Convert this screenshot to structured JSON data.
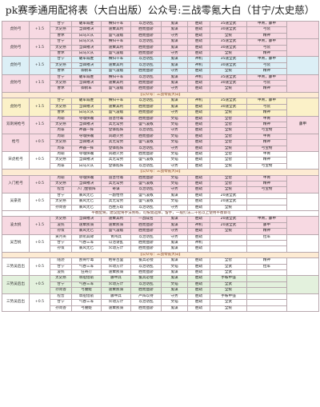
{
  "title": "pk赛季通用配将表（大白出版）公众号:三战零氪大白（甘宁/太史慈）",
  "blocks": [
    {
      "label": "虎防弓",
      "mark": "+1.5",
      "theme": "pink",
      "note": "",
      "rows": [
        [
          "甘宁",
          "破军威胜",
          "横扫千军",
          "以治访乱",
          "鬼谋",
          "胜疏",
          "35速全武",
          "甲胄，藤甲"
        ],
        [
          "太史慈",
          "当锋摧决",
          "速乘其利",
          "胜而益骄",
          "鬼谋",
          "胜疏",
          "30速全武",
          "弓装"
        ],
        [
          "曹休",
          "白马义从",
          "盛气凌敌",
          "胜而益骄",
          "守势",
          "胜疏",
          "全统",
          "精神"
        ]
      ]
    },
    {
      "label": "虎防弓",
      "mark": "+1.5",
      "theme": "pink",
      "note": "",
      "rows": [
        [
          "甘宁",
          "白马义从",
          "横扫千军",
          "以治访乱",
          "鬼谋",
          "胜疏",
          "35速全武",
          "甲胄，藤甲"
        ],
        [
          "太史慈",
          "当锋摧决",
          "速乘其利",
          "胜而益骄",
          "鬼谋",
          "胜疏",
          "30速全武",
          "弓装"
        ],
        [
          "曹休",
          "白马义从",
          "盛气凌敌",
          "胜而益骄",
          "守势",
          "胜疏",
          "全统",
          "精神"
        ]
      ]
    },
    {
      "label": "虎防弓",
      "mark": "+1.5",
      "theme": "blue",
      "note": "",
      "rows": [
        [
          "甘宁",
          "破军威胜",
          "横扫千军",
          "以治访乱",
          "鬼谋",
          "神机",
          "35速全武",
          "甲胄，藤甲"
        ],
        [
          "太史慈",
          "当锋摧决",
          "速乘其利",
          "以治访乱",
          "鬼谋",
          "神机",
          "30速全武",
          "弓装"
        ],
        [
          "曹休",
          "御鹤军",
          "盛气凌敌",
          "胜而益骄",
          "守势",
          "胜疏",
          "全统",
          "精神"
        ]
      ]
    },
    {
      "label": "虎防弓",
      "mark": "+1.5",
      "theme": "pink",
      "note": "【公众号：三战零氪大白】",
      "rows": [
        [
          "甘宁",
          "破军威胜",
          "横扫千军",
          "以治访乱",
          "鬼谋",
          "神机",
          "35速全武",
          "甲胄，藤甲"
        ],
        [
          "太史慈",
          "当锋摧决",
          "速乘其利",
          "胜而益骄",
          "鬼谋",
          "胜疏",
          "30速全武",
          "弓装"
        ],
        [
          "曹休",
          "御鹤军",
          "盛气凌敌",
          "胜而益骄",
          "守势",
          "胜疏",
          "全统",
          "精神"
        ]
      ]
    },
    {
      "label": "虎防弓",
      "mark": "+1.5",
      "theme": "yellow",
      "note": "",
      "rows": [
        [
          "甘宁",
          "破军威胜",
          "横扫千军",
          "以治访乱",
          "鬼谋",
          "神机",
          "35速全武",
          "甲胄，藤甲"
        ],
        [
          "太史慈",
          "当锋摧决",
          "速乘其利",
          "胜而益骄",
          "鬼谋",
          "胜疏",
          "30速全武",
          "弓装"
        ],
        [
          "曹休",
          "白马义从",
          "盛气凌敌",
          "胜而益骄",
          "守势",
          "胜疏",
          "全统",
          "精神"
        ]
      ]
    },
    {
      "label": "双刺将枪弓",
      "mark": "+1.5",
      "theme": "pink",
      "note": "",
      "extra": "藤甲",
      "rows": [
        [
          "周瑜",
          "夺魂挟魄",
          "道晋付毒",
          "胜而益骄",
          "文韬",
          "胜疏",
          "全智",
          "甲胄"
        ],
        [
          "太史慈",
          "当锋摧决",
          "兵无常势",
          "盛气凌敌",
          "文韬",
          "胜疏",
          "全智",
          "精神"
        ],
        [
          "周泰",
          "神器一挥",
          "登锋陷阵",
          "以治访乱",
          "守势",
          "胜疏",
          "全统",
          "弓宝物"
        ]
      ]
    },
    {
      "label": "枪弓",
      "mark": "+0.5",
      "theme": "pink",
      "note": "",
      "rows": [
        [
          "周瑜",
          "夺魂挟魄",
          "风助火势",
          "胜而益骄",
          "文韬",
          "胜疏",
          "全智",
          "甲胄"
        ],
        [
          "太史慈",
          "当锋摧决",
          "兵无常势",
          "盛气凌敌",
          "文韬",
          "胜疏",
          "全智",
          "精神"
        ],
        [
          "周泰",
          "神器一挥",
          "登锋陷阵",
          "以治访乱",
          "守势",
          "胜疏",
          "全统",
          "弓宝物"
        ]
      ]
    },
    {
      "label": "宋虎枪弓",
      "mark": "+0.5",
      "theme": "white",
      "note": "【公众号：三战零氪大白】",
      "rows": [
        [
          "周瑜",
          "夺魂挟魄",
          "风助火势",
          "胜而益骄",
          "文韬",
          "胜疏",
          "全智",
          "甲胄"
        ],
        [
          "太史慈",
          "当锋摧决",
          "兵无常势",
          "盛气凌敌",
          "文韬",
          "胜疏",
          "全智",
          "精神"
        ],
        [
          "周泰",
          "白马义从",
          "登锋陷阵",
          "以治访乱",
          "守势",
          "胜疏",
          "全统",
          "弓宝物"
        ]
      ]
    },
    {
      "label": "入门枪弓",
      "mark": "+0.5",
      "theme": "pink",
      "note": "",
      "rows": [
        [
          "周瑜",
          "夺魂挟魄",
          "道晋付毒",
          "胜而益骄",
          "文韬",
          "胜疏",
          "全智",
          "甲胄"
        ],
        [
          "太史慈",
          "当锋摧决",
          "兵无常势",
          "盛气凌敌",
          "文韬",
          "胜疏",
          "全智",
          "精神"
        ],
        [
          "程普",
          "人门金锁阵",
          "奇谋",
          "以治访乱",
          "守势",
          "胜疏",
          "全统",
          "弓宝物"
        ]
      ]
    },
    {
      "label": "吴豪弟",
      "mark": "+0.5",
      "theme": "white",
      "note": "平衡配将，建议配将手法熟练，可按需选择，留手，一般打法二十名以上使用平衡即可",
      "rows": [
        [
          "甘宁",
          "暴风无匕",
          "一副怡然",
          "盛气凌敌",
          "鬼谋",
          "胜疏",
          "20速全武",
          ""
        ],
        [
          "太史慈",
          "暴风无匕",
          "兵无常势",
          "盛气凌敌",
          "文韬",
          "胜疏",
          "20速全武",
          ""
        ],
        [
          "孙尚香",
          "暴风无匕",
          "百胜方歧",
          "以治访乱",
          "守势",
          "胜疏",
          "全统",
          ""
        ]
      ]
    },
    {
      "label": "凌太桃",
      "mark": "+1.5",
      "theme": "pink",
      "note": "",
      "rows": [
        [
          "太史慈",
          "当锋摧决",
          "速乘其利",
          "一战成名",
          "鬼谋",
          "胜疏",
          "20速全武",
          "甲胄，藤甲"
        ],
        [
          "凌统",
          "速乘疾骑",
          "速乘疾骑",
          "胜而益骄",
          "鬼谋",
          "神机",
          "20速全武",
          "藤甲"
        ],
        [
          "孙策",
          "暴风无匕",
          "盛气凌敌",
          "胜而益骄",
          "守势",
          "胜疏",
          "全统",
          "精神"
        ]
      ]
    },
    {
      "label": "吴吉桃",
      "mark": "+0.5",
      "theme": "white",
      "note": "【公众号：三战零氪大白】",
      "rows": [
        [
          "黄月英",
          "鹊衔其碌",
          "青州兵",
          "以治访乱",
          "守势",
          "胜疏",
          "",
          "拉军"
        ],
        [
          "甘宁",
          "气吞三军",
          "以治访乱",
          "胜而益骄",
          "鬼谋",
          "神机",
          "",
          ""
        ],
        [
          "孙策",
          "暴风无匕",
          "众动方计",
          "胜而益骄",
          "鬼谋",
          "胜疏",
          "",
          ""
        ]
      ]
    },
    {
      "label": "三势吴后出",
      "mark": "+0.5",
      "theme": "white",
      "note": "",
      "rows": [
        [
          "陆逊",
          "刮骨疗毒",
          "枯骨百里",
          "援兵必授",
          "鬼谋",
          "胜疏",
          "全智",
          "精神"
        ],
        [
          "甘宁",
          "气吞三军",
          "众动方计",
          "以治访乱",
          "文韬",
          "胜疏",
          "全武",
          "拉军"
        ],
        [
          "凌统",
          "狂奇刃",
          "速乘疾骑",
          "胜而益骄",
          "鬼谋",
          "胜疏",
          "全武",
          ""
        ]
      ]
    },
    {
      "label": "三势吴后出",
      "mark": "+0.5",
      "theme": "green",
      "note": "",
      "rows": [
        [
          "太史慈",
          "草船借箭",
          "藤甲兵",
          "援兵必授",
          "鬼谋",
          "胜疏",
          "手鞍甲强",
          ""
        ],
        [
          "甘宁",
          "气吞三军",
          "众动方计",
          "以治访乱",
          "文韬",
          "胜疏",
          "全武",
          ""
        ],
        [
          "孙尚香",
          "弓腰姬",
          "速乘疾骑",
          "胜而益骄",
          "鬼谋",
          "胜疏",
          "全统",
          ""
        ]
      ]
    },
    {
      "label": "三势吴后出",
      "mark": "+0.5",
      "theme": "white",
      "note": "",
      "rows": [
        [
          "程普",
          "草船借箭",
          "藤甲兵",
          "严阵以待",
          "守势",
          "胜疏",
          "手鞍甲强",
          ""
        ],
        [
          "甘宁",
          "气吞三军",
          "众动方计",
          "以治访乱",
          "文韬",
          "胜疏",
          "全武",
          ""
        ],
        [
          "孙尚香",
          "弓腰姬",
          "速乘疾骑",
          "胜而益骄",
          "鬼谋",
          "胜疏",
          "全统",
          ""
        ]
      ]
    }
  ]
}
